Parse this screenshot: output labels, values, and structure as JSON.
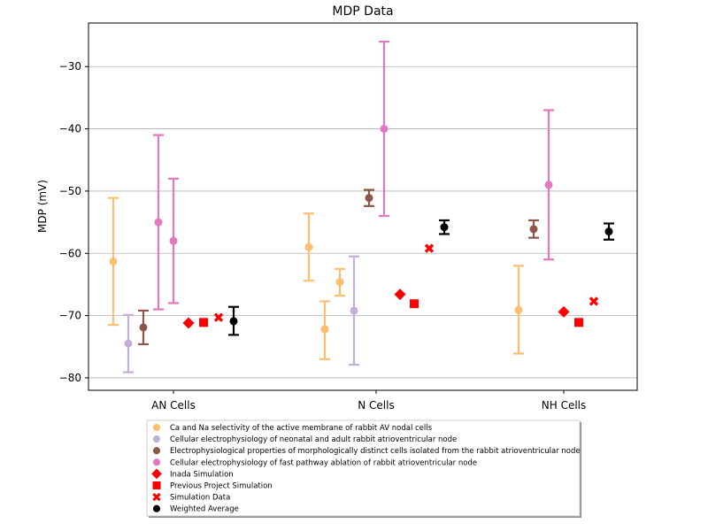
{
  "chart_data": {
    "type": "scatter",
    "title": "MDP Data",
    "xlabel": "",
    "ylabel": "MDP (mV)",
    "categories": [
      "AN Cells",
      "N Cells",
      "NH Cells"
    ],
    "ylim": [
      -82,
      -23
    ],
    "yticks": [
      -30,
      -40,
      -50,
      -60,
      -70,
      -80
    ],
    "ytick_labels": [
      "−30",
      "−40",
      "−50",
      "−60",
      "−70",
      "−80"
    ],
    "grid": "horizontal",
    "legend_placement": "below-plot",
    "series": [
      {
        "name": "Ca and Na selectivity of the active membrane of rabbit AV nodal cells",
        "color": "#fdbf6f",
        "marker": "circle",
        "points": [
          {
            "category": "AN Cells",
            "y": -61.3,
            "yerr_low": -71.5,
            "yerr_high": -51.1
          },
          {
            "category": "N Cells",
            "y": -59.0,
            "yerr_low": -64.4,
            "yerr_high": -53.6
          },
          {
            "category": "N Cells",
            "y": -72.2,
            "yerr_low": -77.0,
            "yerr_high": -67.7
          },
          {
            "category": "N Cells",
            "y": -64.6,
            "yerr_low": -66.8,
            "yerr_high": -62.5
          },
          {
            "category": "NH Cells",
            "y": -69.1,
            "yerr_low": -76.1,
            "yerr_high": -62.0
          }
        ]
      },
      {
        "name": "Cellular electrophysiology of neonatal and adult rabbit atrioventricular node",
        "color": "#c2aed6",
        "marker": "circle",
        "points": [
          {
            "category": "AN Cells",
            "y": -74.5,
            "yerr_low": -79.1,
            "yerr_high": -69.9
          },
          {
            "category": "N Cells",
            "y": -69.2,
            "yerr_low": -77.9,
            "yerr_high": -60.5
          }
        ]
      },
      {
        "name": "Electrophysiological properties of morphologically distinct cells isolated from the rabbit atrioventricular node",
        "color": "#8c564b",
        "marker": "circle",
        "points": [
          {
            "category": "AN Cells",
            "y": -71.9,
            "yerr_low": -74.6,
            "yerr_high": -69.2
          },
          {
            "category": "N Cells",
            "y": -51.1,
            "yerr_low": -52.4,
            "yerr_high": -49.8
          },
          {
            "category": "NH Cells",
            "y": -56.1,
            "yerr_low": -57.5,
            "yerr_high": -54.7
          }
        ]
      },
      {
        "name": "Cellular electrophysiology of fast pathway ablation of rabbit atrioventricular node",
        "color": "#e377c2",
        "marker": "circle",
        "points": [
          {
            "category": "AN Cells",
            "y": -55.0,
            "yerr_low": -69.0,
            "yerr_high": -41.0
          },
          {
            "category": "AN Cells",
            "y": -58.0,
            "yerr_low": -68.0,
            "yerr_high": -48.0
          },
          {
            "category": "N Cells",
            "y": -40.0,
            "yerr_low": -54.0,
            "yerr_high": -26.0
          },
          {
            "category": "NH Cells",
            "y": -49.0,
            "yerr_low": -61.0,
            "yerr_high": -37.0
          }
        ]
      },
      {
        "name": "Inada Simulation",
        "color": "#ff0000",
        "marker": "diamond",
        "points": [
          {
            "category": "AN Cells",
            "y": -71.2
          },
          {
            "category": "N Cells",
            "y": -66.6
          },
          {
            "category": "NH Cells",
            "y": -69.4
          }
        ]
      },
      {
        "name": "Previous Project Simulation",
        "color": "#ff0000",
        "marker": "square",
        "points": [
          {
            "category": "AN Cells",
            "y": -71.1
          },
          {
            "category": "N Cells",
            "y": -68.1
          },
          {
            "category": "NH Cells",
            "y": -71.1
          }
        ]
      },
      {
        "name": "Simulation Data",
        "color": "#ff0000",
        "marker": "x",
        "points": [
          {
            "category": "AN Cells",
            "y": -70.3
          },
          {
            "category": "N Cells",
            "y": -59.2
          },
          {
            "category": "NH Cells",
            "y": -67.7
          }
        ]
      },
      {
        "name": "Weighted Average",
        "color": "#000000",
        "marker": "circle",
        "points": [
          {
            "category": "AN Cells",
            "y": -70.9,
            "yerr_low": -73.1,
            "yerr_high": -68.6
          },
          {
            "category": "N Cells",
            "y": -55.8,
            "yerr_low": -56.9,
            "yerr_high": -54.7
          },
          {
            "category": "NH Cells",
            "y": -56.5,
            "yerr_low": -57.8,
            "yerr_high": -55.2
          }
        ]
      }
    ]
  }
}
